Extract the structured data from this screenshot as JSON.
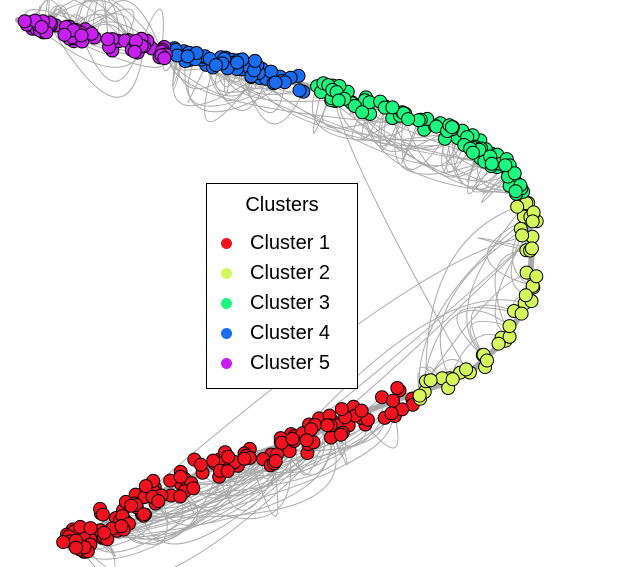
{
  "legend": {
    "title": "Clusters",
    "items": [
      {
        "label": "Cluster 1",
        "color": "#f0121f"
      },
      {
        "label": "Cluster 2",
        "color": "#d6f75b"
      },
      {
        "label": "Cluster 3",
        "color": "#1cf77f"
      },
      {
        "label": "Cluster 4",
        "color": "#1a6cf0"
      },
      {
        "label": "Cluster 5",
        "color": "#c81ff0"
      }
    ]
  },
  "edge_color": "#aaaaaa"
}
